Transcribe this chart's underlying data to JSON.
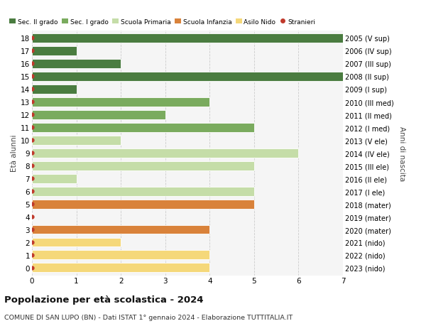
{
  "ages": [
    18,
    17,
    16,
    15,
    14,
    13,
    12,
    11,
    10,
    9,
    8,
    7,
    6,
    5,
    4,
    3,
    2,
    1,
    0
  ],
  "right_labels": [
    "2005 (V sup)",
    "2006 (IV sup)",
    "2007 (III sup)",
    "2008 (II sup)",
    "2009 (I sup)",
    "2010 (III med)",
    "2011 (II med)",
    "2012 (I med)",
    "2013 (V ele)",
    "2014 (IV ele)",
    "2015 (III ele)",
    "2016 (II ele)",
    "2017 (I ele)",
    "2018 (mater)",
    "2019 (mater)",
    "2020 (mater)",
    "2021 (nido)",
    "2022 (nido)",
    "2023 (nido)"
  ],
  "values": [
    7,
    1,
    2,
    7,
    1,
    4,
    3,
    5,
    2,
    6,
    5,
    1,
    5,
    5,
    0,
    4,
    2,
    4,
    4
  ],
  "colors": [
    "#4a7c40",
    "#4a7c40",
    "#4a7c40",
    "#4a7c40",
    "#4a7c40",
    "#7aab5e",
    "#7aab5e",
    "#7aab5e",
    "#c5dda8",
    "#c5dda8",
    "#c5dda8",
    "#c5dda8",
    "#c5dda8",
    "#d9823a",
    "#d9823a",
    "#d9823a",
    "#f5d87a",
    "#f5d87a",
    "#f5d87a"
  ],
  "dot_color": "#c0392b",
  "legend_labels": [
    "Sec. II grado",
    "Sec. I grado",
    "Scuola Primaria",
    "Scuola Infanzia",
    "Asilo Nido",
    "Stranieri"
  ],
  "legend_colors": [
    "#4a7c40",
    "#7aab5e",
    "#c5dda8",
    "#d9823a",
    "#f5d87a",
    "#c0392b"
  ],
  "legend_marker_types": [
    "s",
    "s",
    "s",
    "s",
    "s",
    "o"
  ],
  "title": "Popolazione per età scolastica - 2024",
  "subtitle": "COMUNE DI SAN LUPO (BN) - Dati ISTAT 1° gennaio 2024 - Elaborazione TUTTITALIA.IT",
  "ylabel_left": "Età alunni",
  "ylabel_right": "Anni di nascita",
  "xlim": [
    0,
    7
  ],
  "xticks": [
    0,
    1,
    2,
    3,
    4,
    5,
    6,
    7
  ],
  "bg_color": "#f5f5f5",
  "grid_color": "#cccccc"
}
